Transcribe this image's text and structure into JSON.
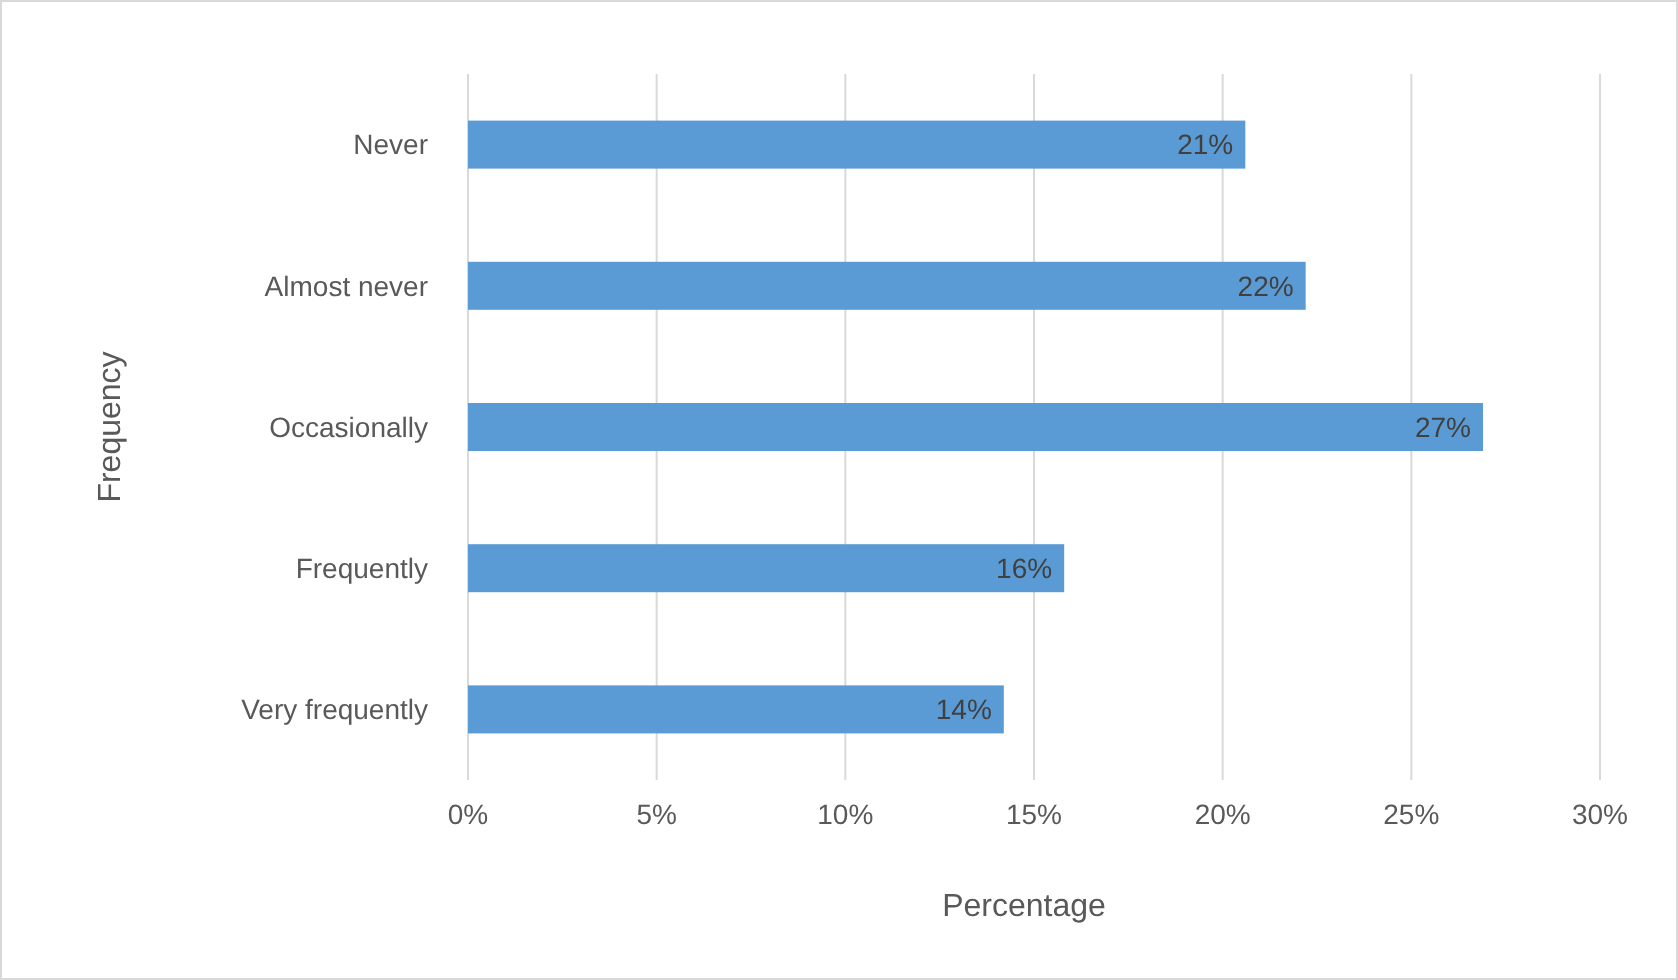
{
  "chart_data": {
    "type": "bar",
    "orientation": "horizontal",
    "xlabel": "Percentage",
    "ylabel": "Frequency",
    "categories": [
      "Never",
      "Almost never",
      "Occasionally",
      "Frequently",
      "Very frequently"
    ],
    "values": [
      20.6,
      22.2,
      26.9,
      15.8,
      14.2
    ],
    "value_labels": [
      "21%",
      "22%",
      "27%",
      "16%",
      "14%"
    ],
    "color": "#5b9bd5",
    "xlim": [
      0,
      30
    ],
    "xticks": [
      {
        "value": 0,
        "label": "0%"
      },
      {
        "value": 5,
        "label": "5%"
      },
      {
        "value": 10,
        "label": "10%"
      },
      {
        "value": 15,
        "label": "15%"
      },
      {
        "value": 20,
        "label": "20%"
      },
      {
        "value": 25,
        "label": "25%"
      },
      {
        "value": 30,
        "label": "30%"
      }
    ],
    "grid": "x"
  }
}
